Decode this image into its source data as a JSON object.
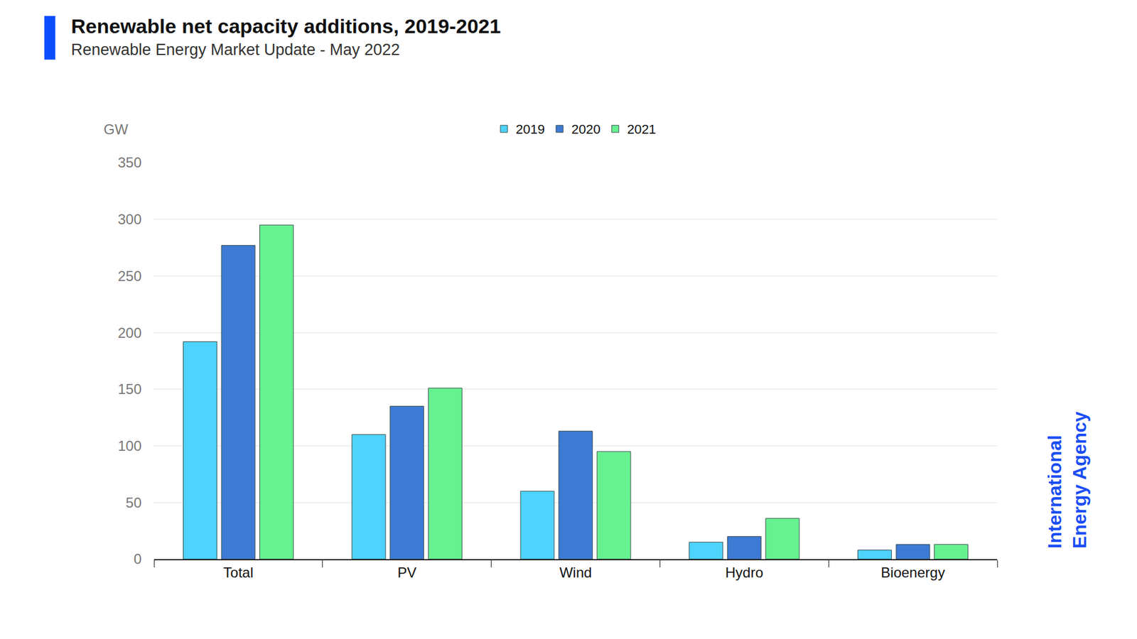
{
  "chart_data": {
    "type": "bar",
    "title": "Renewable net capacity additions, 2019-2021",
    "subtitle": "Renewable Energy Market Update - May 2022",
    "y_label": "GW",
    "brand": [
      "International",
      "Energy Agency"
    ],
    "categories": [
      "Total",
      "PV",
      "Wind",
      "Hydro",
      "Bioenergy"
    ],
    "series": [
      {
        "name": "2019",
        "color": "#4dd3fc",
        "values": [
          192,
          110,
          60,
          15,
          8
        ]
      },
      {
        "name": "2020",
        "color": "#3d7ad4",
        "values": [
          277,
          135,
          113,
          20,
          13
        ]
      },
      {
        "name": "2021",
        "color": "#66f291",
        "values": [
          295,
          151,
          95,
          36,
          13
        ]
      }
    ],
    "ylim": [
      0,
      350
    ],
    "yticks": [
      0,
      50,
      100,
      150,
      200,
      250,
      300,
      350
    ],
    "grid": true,
    "legend": "top"
  }
}
